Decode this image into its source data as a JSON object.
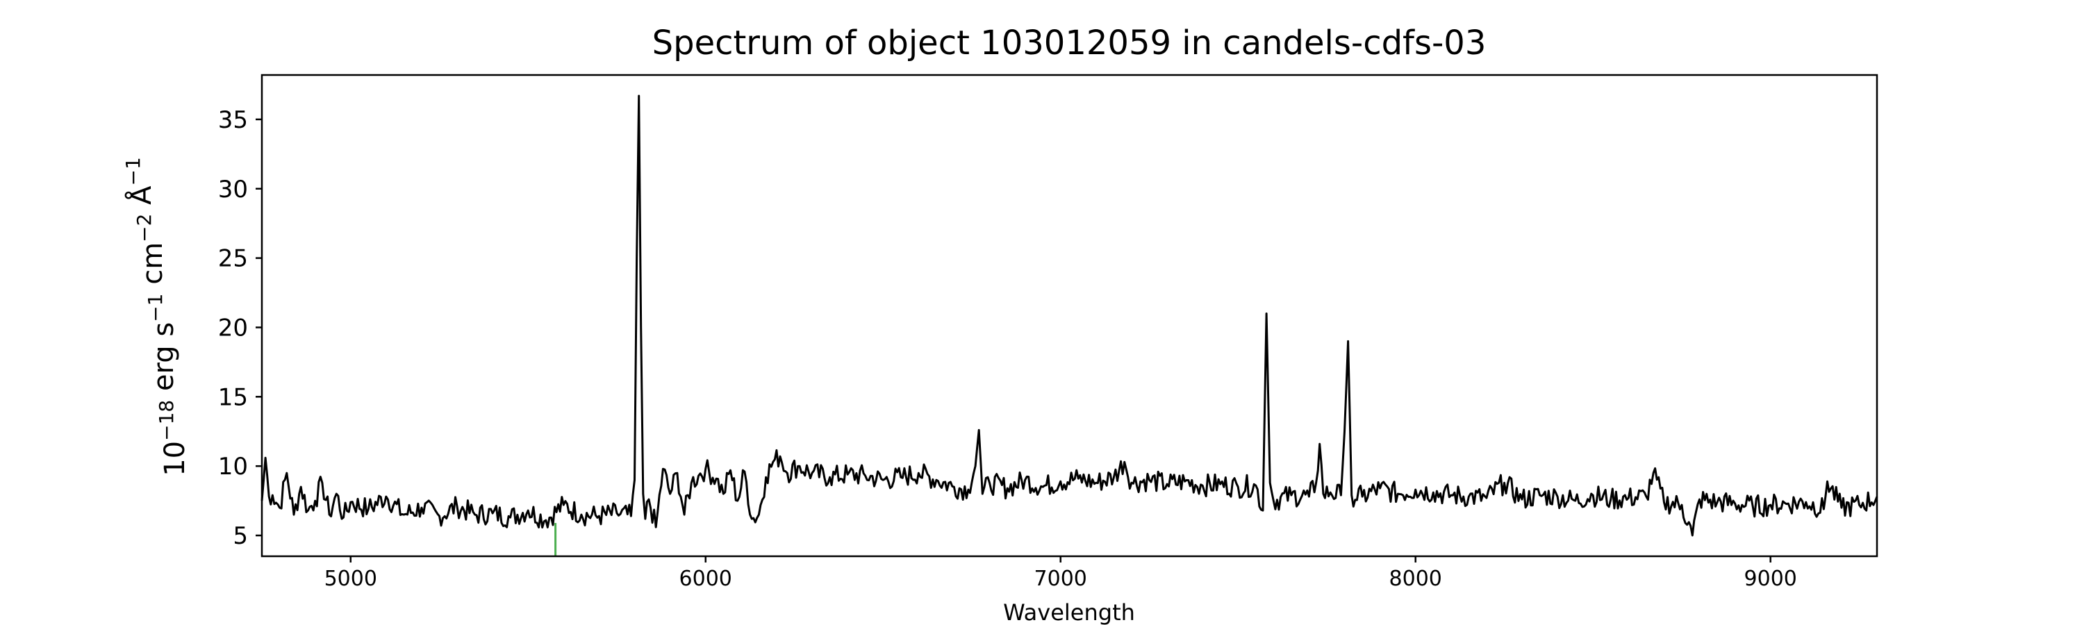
{
  "chart_data": {
    "type": "line",
    "title": "Spectrum of object 103012059 in candels-cdfs-03",
    "xlabel": "Wavelength",
    "ylabel": "10^-18 erg s^-1 cm^-2 Å^-1",
    "xlim": [
      4750,
      9300
    ],
    "ylim": [
      3.5,
      38.2
    ],
    "xticks": [
      5000,
      6000,
      7000,
      8000,
      9000
    ],
    "yticks": [
      5,
      10,
      15,
      20,
      25,
      30,
      35
    ],
    "grid": false,
    "legend": "none",
    "colors": {
      "spectrum": "#000000",
      "marker": "#4caf50"
    },
    "series": [
      {
        "x": [
          4750,
          4760,
          4770,
          4780,
          4800,
          4820,
          4840,
          4860,
          4880,
          4900,
          4920,
          4940,
          4960,
          4980,
          5000,
          5050,
          5100,
          5150,
          5200,
          5250,
          5300,
          5350,
          5400,
          5450,
          5500,
          5550,
          5600,
          5650,
          5700,
          5750,
          5790,
          5800,
          5806,
          5812,
          5818,
          5824,
          5830,
          5840,
          5860,
          5880,
          5900,
          5920,
          5940,
          5960,
          5980,
          6000,
          6030,
          6050,
          6070,
          6090,
          6110,
          6130,
          6150,
          6170,
          6190,
          6210,
          6230,
          6260,
          6300,
          6350,
          6400,
          6450,
          6500,
          6550,
          6600,
          6650,
          6700,
          6740,
          6760,
          6770,
          6780,
          6800,
          6850,
          6900,
          6950,
          7000,
          7050,
          7100,
          7150,
          7180,
          7200,
          7250,
          7300,
          7350,
          7400,
          7450,
          7500,
          7550,
          7570,
          7580,
          7590,
          7600,
          7650,
          7700,
          7720,
          7730,
          7740,
          7760,
          7790,
          7800,
          7810,
          7820,
          7850,
          7900,
          7950,
          8000,
          8050,
          8100,
          8150,
          8200,
          8250,
          8300,
          8350,
          8400,
          8450,
          8500,
          8550,
          8600,
          8650,
          8670,
          8700,
          8750,
          8780,
          8800,
          8850,
          8900,
          8950,
          9000,
          9050,
          9100,
          9150,
          9160,
          9200,
          9250,
          9300
        ],
        "y": [
          7.5,
          10.6,
          7.8,
          7.9,
          7.0,
          9.5,
          6.5,
          8.5,
          6.8,
          7.5,
          8.8,
          6.5,
          8.0,
          6.3,
          7.4,
          6.9,
          7.8,
          6.5,
          7.0,
          6.4,
          7.1,
          6.5,
          6.6,
          6.3,
          6.8,
          6.1,
          7.2,
          6.5,
          6.4,
          6.6,
          6.4,
          9.0,
          25.0,
          36.7,
          20.0,
          8.0,
          6.2,
          7.6,
          5.6,
          9.8,
          8.0,
          9.5,
          6.5,
          8.8,
          9.3,
          9.8,
          9.1,
          8.0,
          9.7,
          7.5,
          9.6,
          6.2,
          6.5,
          9.2,
          10.3,
          10.7,
          9.5,
          10.0,
          9.5,
          9.2,
          9.4,
          9.3,
          9.0,
          9.2,
          9.5,
          9.0,
          8.5,
          8.3,
          10.0,
          12.6,
          8.0,
          8.8,
          8.4,
          9.0,
          8.5,
          8.9,
          9.1,
          8.8,
          9.2,
          10.3,
          8.8,
          9.0,
          8.7,
          8.9,
          8.6,
          8.7,
          8.5,
          8.6,
          6.8,
          21.0,
          8.8,
          7.5,
          7.9,
          7.8,
          8.8,
          11.6,
          8.0,
          8.1,
          7.9,
          12.5,
          19.0,
          7.9,
          7.8,
          8.4,
          8.0,
          8.3,
          8.1,
          7.9,
          7.8,
          7.7,
          8.8,
          7.6,
          7.9,
          7.8,
          7.5,
          7.9,
          7.6,
          7.7,
          7.8,
          9.5,
          7.4,
          7.2,
          5.0,
          7.6,
          7.4,
          7.3,
          7.1,
          7.2,
          7.3,
          7.4,
          6.9,
          8.9,
          7.0,
          7.2,
          7.8
        ]
      }
    ],
    "markers": [
      {
        "x": 5577,
        "y_from": 3.5,
        "y_to": 5.9
      }
    ]
  }
}
